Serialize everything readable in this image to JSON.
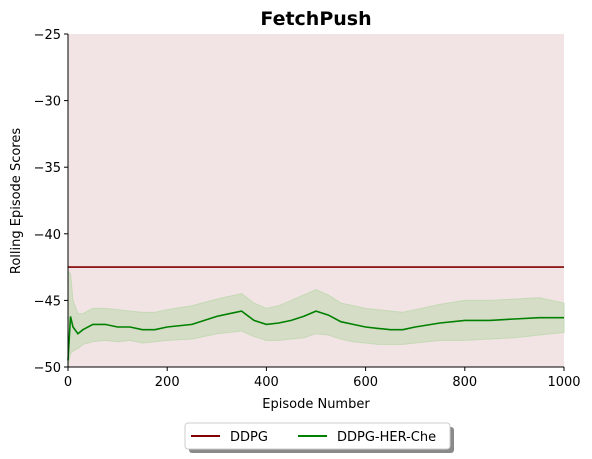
{
  "chart_data": {
    "type": "line",
    "title": "FetchPush",
    "xlabel": "Episode Number",
    "ylabel": "Rolling Episode Scores",
    "xlim": [
      0,
      1000
    ],
    "ylim": [
      -50,
      -25
    ],
    "xticks": [
      0,
      200,
      400,
      600,
      800,
      1000
    ],
    "yticks": [
      -25,
      -30,
      -35,
      -40,
      -45,
      -50
    ],
    "xtick_labels": [
      "0",
      "200",
      "400",
      "600",
      "800",
      "1000"
    ],
    "ytick_labels": [
      "−25",
      "−30",
      "−35",
      "−40",
      "−45",
      "−50"
    ],
    "grid": false,
    "legend_position": "bottom-center-outside",
    "background_color": "#f2e4e4",
    "series": [
      {
        "name": "DDPG",
        "color": "#800000",
        "x": [
          0,
          1000
        ],
        "y": [
          -42.5,
          -42.5
        ]
      },
      {
        "name": "DDPG-HER-Che",
        "color": "#008000",
        "band_color": "#c5d9b5",
        "x": [
          0,
          5,
          10,
          20,
          30,
          50,
          75,
          100,
          125,
          150,
          175,
          200,
          250,
          300,
          325,
          350,
          375,
          400,
          425,
          450,
          475,
          500,
          525,
          550,
          575,
          600,
          625,
          650,
          675,
          700,
          750,
          800,
          850,
          900,
          950,
          1000
        ],
        "y": [
          -49.5,
          -46.2,
          -47.0,
          -47.5,
          -47.2,
          -46.8,
          -46.8,
          -47.0,
          -47.0,
          -47.2,
          -47.2,
          -47.0,
          -46.8,
          -46.2,
          -46.0,
          -45.8,
          -46.5,
          -46.8,
          -46.7,
          -46.5,
          -46.2,
          -45.8,
          -46.1,
          -46.6,
          -46.8,
          -47.0,
          -47.1,
          -47.2,
          -47.2,
          -47.0,
          -46.7,
          -46.5,
          -46.5,
          -46.4,
          -46.3,
          -46.3
        ],
        "lower": [
          -50.0,
          -49.0,
          -48.8,
          -48.6,
          -48.3,
          -48.1,
          -48.0,
          -48.1,
          -48.0,
          -48.2,
          -48.1,
          -48.0,
          -47.9,
          -47.5,
          -47.4,
          -47.3,
          -47.7,
          -48.0,
          -48.0,
          -47.9,
          -47.8,
          -47.5,
          -47.6,
          -47.9,
          -48.1,
          -48.2,
          -48.3,
          -48.3,
          -48.3,
          -48.2,
          -48.0,
          -48.0,
          -47.9,
          -47.8,
          -47.6,
          -47.4
        ],
        "upper": [
          -42.8,
          -43.0,
          -45.0,
          -46.0,
          -46.0,
          -45.6,
          -45.6,
          -45.7,
          -45.8,
          -45.9,
          -45.9,
          -45.7,
          -45.4,
          -44.9,
          -44.7,
          -44.5,
          -45.2,
          -45.6,
          -45.4,
          -45.0,
          -44.6,
          -44.2,
          -44.6,
          -45.2,
          -45.4,
          -45.6,
          -45.7,
          -45.8,
          -45.9,
          -45.7,
          -45.3,
          -45.0,
          -45.0,
          -44.9,
          -44.8,
          -45.2
        ]
      }
    ]
  }
}
